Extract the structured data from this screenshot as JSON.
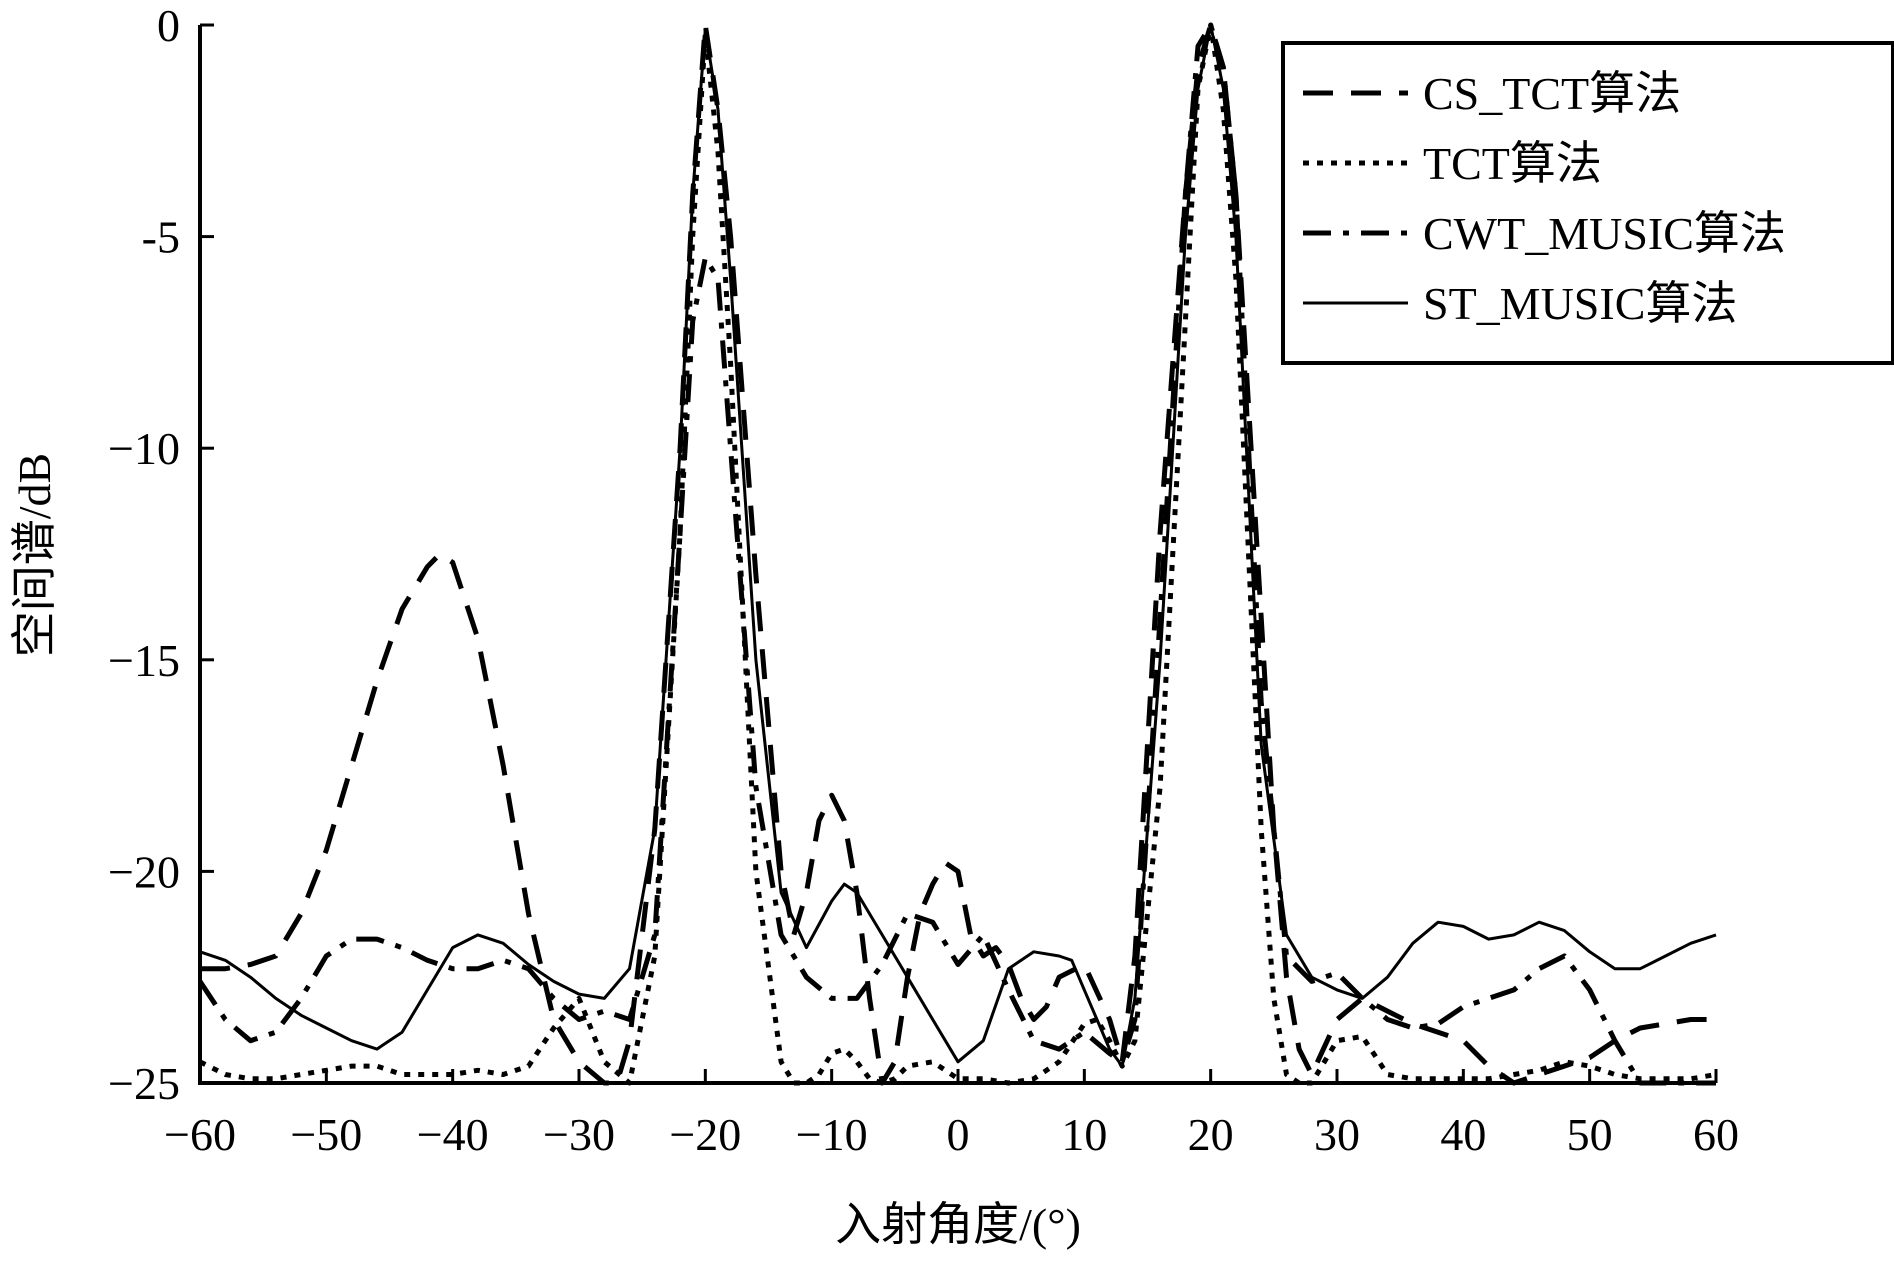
{
  "chart_data": {
    "type": "line",
    "title": "",
    "xlabel": "入射角度/(°)",
    "ylabel": "空间谱/dB",
    "xlim": [
      -60,
      60
    ],
    "ylim": [
      -25,
      0
    ],
    "xticks": [
      -60,
      -50,
      -40,
      -30,
      -20,
      -10,
      0,
      10,
      20,
      30,
      40,
      50,
      60
    ],
    "yticks": [
      0,
      -5,
      -10,
      -15,
      -20,
      -25
    ],
    "xtick_labels": [
      "−60",
      "−50",
      "−40",
      "−30",
      "−20",
      "−10",
      "0",
      "10",
      "20",
      "30",
      "40",
      "50",
      "60"
    ],
    "ytick_labels": [
      "0",
      "-5",
      "−10",
      "−15",
      "−20",
      "−25"
    ],
    "grid": false,
    "legend_position": "top-right",
    "series": [
      {
        "name": "CS_TCT算法",
        "style": "dashed",
        "color": "#000000",
        "x": [
          -60,
          -58,
          -56,
          -54,
          -52,
          -50,
          -48,
          -46,
          -44,
          -42,
          -41,
          -40,
          -38,
          -36,
          -34,
          -32,
          -30,
          -28,
          -27,
          -26,
          -24,
          -22,
          -21,
          -20,
          -19,
          -18,
          -16,
          -14,
          -13,
          -12,
          -11,
          -10,
          -9,
          -8,
          -7,
          -6,
          -5,
          -4,
          -3,
          -2,
          -1,
          0,
          1,
          2,
          3,
          4,
          5,
          6,
          7,
          8,
          10,
          12,
          13,
          14,
          16,
          18,
          19,
          20,
          21,
          22,
          24,
          25,
          26,
          27,
          28,
          30,
          32,
          34,
          36,
          38,
          40,
          42,
          44,
          46,
          48,
          50,
          52,
          54,
          56,
          58,
          60
        ],
        "y": [
          -22.3,
          -22.3,
          -22.2,
          -22.0,
          -21.0,
          -19.5,
          -17.5,
          -15.5,
          -13.8,
          -12.8,
          -12.5,
          -12.7,
          -14.5,
          -17.5,
          -21.0,
          -23.5,
          -24.5,
          -25.0,
          -25.0,
          -24.0,
          -19.0,
          -10.0,
          -4.0,
          0,
          -2.0,
          -5.0,
          -13.0,
          -20.0,
          -21.5,
          -20.5,
          -18.8,
          -18.2,
          -18.8,
          -20.5,
          -23.0,
          -25.0,
          -24.5,
          -22.5,
          -21.0,
          -20.3,
          -19.8,
          -20.0,
          -21.5,
          -22.0,
          -21.8,
          -22.2,
          -23.0,
          -23.5,
          -23.2,
          -22.5,
          -22.2,
          -23.5,
          -24.5,
          -22.0,
          -12.0,
          -4.0,
          -1.0,
          0,
          -1.0,
          -4.0,
          -14.0,
          -19.0,
          -22.5,
          -24.2,
          -24.8,
          -23.5,
          -23.0,
          -23.3,
          -23.6,
          -23.8,
          -24.0,
          -24.6,
          -25.0,
          -24.8,
          -24.6,
          -24.4,
          -24.0,
          -23.7,
          -23.6,
          -23.5,
          -23.5
        ]
      },
      {
        "name": "TCT算法",
        "style": "dotted",
        "color": "#000000",
        "x": [
          -60,
          -58,
          -56,
          -54,
          -52,
          -50,
          -48,
          -46,
          -44,
          -42,
          -40,
          -38,
          -36,
          -34,
          -32,
          -30,
          -28,
          -26,
          -24,
          -22,
          -21,
          -20,
          -19,
          -18,
          -16,
          -14,
          -13,
          -12,
          -11,
          -10,
          -9,
          -8,
          -7,
          -6,
          -5,
          -4,
          -2,
          0,
          2,
          4,
          6,
          8,
          10,
          11,
          12,
          13,
          14,
          16,
          18,
          19,
          20,
          21,
          22,
          24,
          25,
          26,
          27,
          28,
          30,
          32,
          34,
          36,
          38,
          40,
          42,
          44,
          46,
          48,
          50,
          52,
          54,
          56,
          58,
          60
        ],
        "y": [
          -24.5,
          -24.8,
          -24.9,
          -24.9,
          -24.8,
          -24.7,
          -24.6,
          -24.6,
          -24.8,
          -24.8,
          -24.8,
          -24.7,
          -24.8,
          -24.6,
          -23.7,
          -23.0,
          -24.5,
          -25.0,
          -22.0,
          -12.0,
          -5.0,
          -0.2,
          -3.0,
          -8.0,
          -20.0,
          -24.5,
          -25.0,
          -25.0,
          -24.8,
          -24.3,
          -24.2,
          -24.5,
          -24.9,
          -25.0,
          -24.9,
          -24.6,
          -24.5,
          -24.9,
          -24.9,
          -25.0,
          -24.9,
          -24.5,
          -23.6,
          -23.5,
          -24.0,
          -24.6,
          -24.0,
          -18.0,
          -7.0,
          -1.5,
          0,
          -2.0,
          -6.0,
          -19.0,
          -23.0,
          -24.8,
          -25.0,
          -25.0,
          -24.0,
          -23.9,
          -24.8,
          -24.9,
          -24.9,
          -24.9,
          -24.9,
          -24.8,
          -24.7,
          -24.5,
          -24.6,
          -24.8,
          -24.9,
          -24.9,
          -24.9,
          -24.8
        ]
      },
      {
        "name": "CWT_MUSIC算法",
        "style": "dashdot",
        "color": "#000000",
        "x": [
          -60,
          -58,
          -56,
          -54,
          -52,
          -50,
          -48,
          -46,
          -44,
          -42,
          -40,
          -38,
          -36,
          -34,
          -32,
          -30,
          -28,
          -26,
          -24,
          -22,
          -21,
          -20,
          -19,
          -18,
          -16,
          -14,
          -12,
          -10,
          -8,
          -6,
          -4,
          -2,
          0,
          2,
          4,
          6,
          8,
          10,
          12,
          13,
          14,
          16,
          18,
          19,
          20,
          21,
          22,
          24,
          26,
          28,
          30,
          32,
          34,
          36,
          38,
          40,
          42,
          44,
          46,
          48,
          50,
          52,
          54,
          56,
          58,
          60
        ],
        "y": [
          -22.6,
          -23.5,
          -24.0,
          -23.8,
          -23.0,
          -22.0,
          -21.6,
          -21.6,
          -21.8,
          -22.1,
          -22.3,
          -22.3,
          -22.1,
          -22.3,
          -23.0,
          -23.5,
          -23.3,
          -23.5,
          -21.5,
          -12.0,
          -7.0,
          -5.5,
          -6.0,
          -10.0,
          -18.0,
          -21.5,
          -22.5,
          -23.0,
          -23.0,
          -22.2,
          -21.0,
          -21.2,
          -22.2,
          -21.5,
          -22.8,
          -24.0,
          -24.2,
          -23.8,
          -24.3,
          -24.5,
          -23.5,
          -14.0,
          -4.0,
          -0.5,
          0,
          -1.0,
          -4.0,
          -16.0,
          -22.0,
          -22.6,
          -22.4,
          -23.0,
          -23.5,
          -23.7,
          -23.6,
          -23.2,
          -23.0,
          -22.8,
          -22.3,
          -22.0,
          -22.8,
          -24.0,
          -25.0,
          -25.0,
          -25.0,
          -25.0
        ]
      },
      {
        "name": "ST_MUSIC算法",
        "style": "solid",
        "color": "#000000",
        "x": [
          -60,
          -58,
          -56,
          -54,
          -52,
          -50,
          -48,
          -46,
          -44,
          -42,
          -40,
          -38,
          -36,
          -34,
          -32,
          -30,
          -28,
          -26,
          -24,
          -22,
          -21,
          -20,
          -19,
          -18,
          -16,
          -14,
          -12,
          -10,
          -9,
          -8,
          -6,
          -4,
          -2,
          0,
          2,
          4,
          6,
          8,
          9,
          10,
          12,
          13,
          14,
          16,
          18,
          19,
          20,
          21,
          22,
          24,
          26,
          28,
          30,
          32,
          34,
          36,
          38,
          40,
          42,
          44,
          46,
          48,
          50,
          52,
          54,
          56,
          58,
          60
        ],
        "y": [
          -21.9,
          -22.1,
          -22.5,
          -23.0,
          -23.4,
          -23.7,
          -24.0,
          -24.2,
          -23.8,
          -22.8,
          -21.8,
          -21.5,
          -21.7,
          -22.2,
          -22.6,
          -22.9,
          -23.0,
          -22.3,
          -19.0,
          -10.0,
          -4.0,
          -0.1,
          -2.0,
          -6.0,
          -15.0,
          -20.5,
          -21.8,
          -20.7,
          -20.3,
          -20.5,
          -21.5,
          -22.5,
          -23.5,
          -24.5,
          -24.0,
          -22.3,
          -21.9,
          -22.0,
          -22.1,
          -22.8,
          -24.2,
          -24.6,
          -23.0,
          -15.0,
          -5.0,
          -1.5,
          0,
          -1.5,
          -5.0,
          -17.0,
          -21.5,
          -22.5,
          -22.8,
          -23.0,
          -22.5,
          -21.7,
          -21.2,
          -21.3,
          -21.6,
          -21.5,
          -21.2,
          -21.4,
          -21.9,
          -22.3,
          -22.3,
          -22.0,
          -21.7,
          -21.5
        ]
      }
    ]
  }
}
